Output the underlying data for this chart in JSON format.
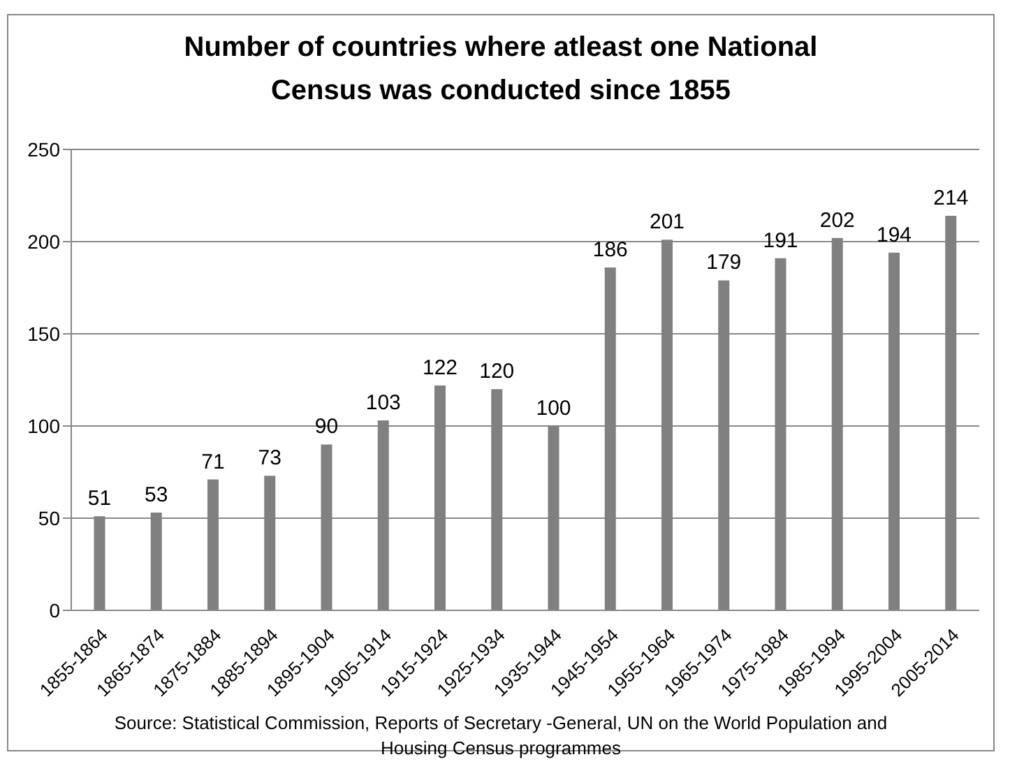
{
  "chart_data": {
    "type": "bar",
    "title": "Number of countries where atleast one National Census was conducted since 1855",
    "categories": [
      "1855-1864",
      "1865-1874",
      "1875-1884",
      "1885-1894",
      "1895-1904",
      "1905-1914",
      "1915-1924",
      "1925-1934",
      "1935-1944",
      "1945-1954",
      "1955-1964",
      "1965-1974",
      "1975-1984",
      "1985-1994",
      "1995-2004",
      "2005-2014"
    ],
    "values": [
      51,
      53,
      71,
      73,
      90,
      103,
      122,
      120,
      100,
      186,
      201,
      179,
      191,
      202,
      194,
      214
    ],
    "color": "#808080",
    "ylim": [
      0,
      250
    ],
    "yticks": [
      0,
      50,
      100,
      150,
      200,
      250
    ],
    "grid": "y",
    "data_labels": true,
    "annotations": [
      "Source: Statistical Commission, Reports of Secretary -General, UN on the World Population and Housing Census programmes"
    ]
  }
}
